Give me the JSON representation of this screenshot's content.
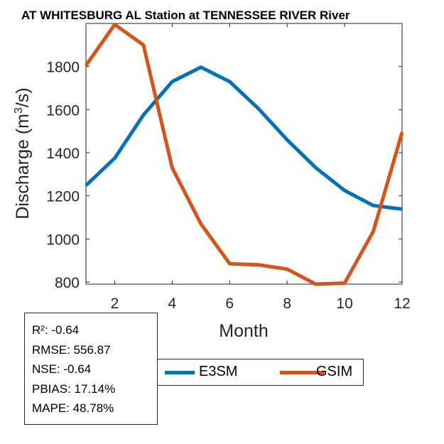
{
  "chart_data": {
    "type": "line",
    "title": "AT WHITESBURG AL  Station at  TENNESSEE RIVER  River",
    "xlabel": "Month",
    "ylabel": "Discharge (m",
    "ylabel_sup": "3",
    "ylabel_tail": "/s)",
    "x": [
      1,
      2,
      3,
      4,
      5,
      6,
      7,
      8,
      9,
      10,
      11,
      12
    ],
    "xlim": [
      1,
      12
    ],
    "ylim": [
      790,
      2000
    ],
    "xticks": [
      2,
      4,
      6,
      8,
      10,
      12
    ],
    "yticks": [
      800,
      1000,
      1200,
      1400,
      1600,
      1800
    ],
    "grid": false,
    "legend_position": "bottom-center",
    "series": [
      {
        "name": "E3SM",
        "color": "#0072BD",
        "values": [
          1248,
          1375,
          1575,
          1730,
          1797,
          1730,
          1605,
          1460,
          1330,
          1225,
          1155,
          1138
        ]
      },
      {
        "name": "GSIM",
        "color": "#D95319",
        "values": [
          1805,
          1995,
          1900,
          1330,
          1070,
          885,
          880,
          860,
          790,
          795,
          1035,
          1495
        ]
      }
    ],
    "stats": [
      {
        "label": "R²: -0.64"
      },
      {
        "label": "RMSE: 556.87"
      },
      {
        "label": "NSE: -0.64"
      },
      {
        "label": "PBIAS: 17.14%"
      },
      {
        "label": "MAPE: 48.78%"
      }
    ]
  }
}
